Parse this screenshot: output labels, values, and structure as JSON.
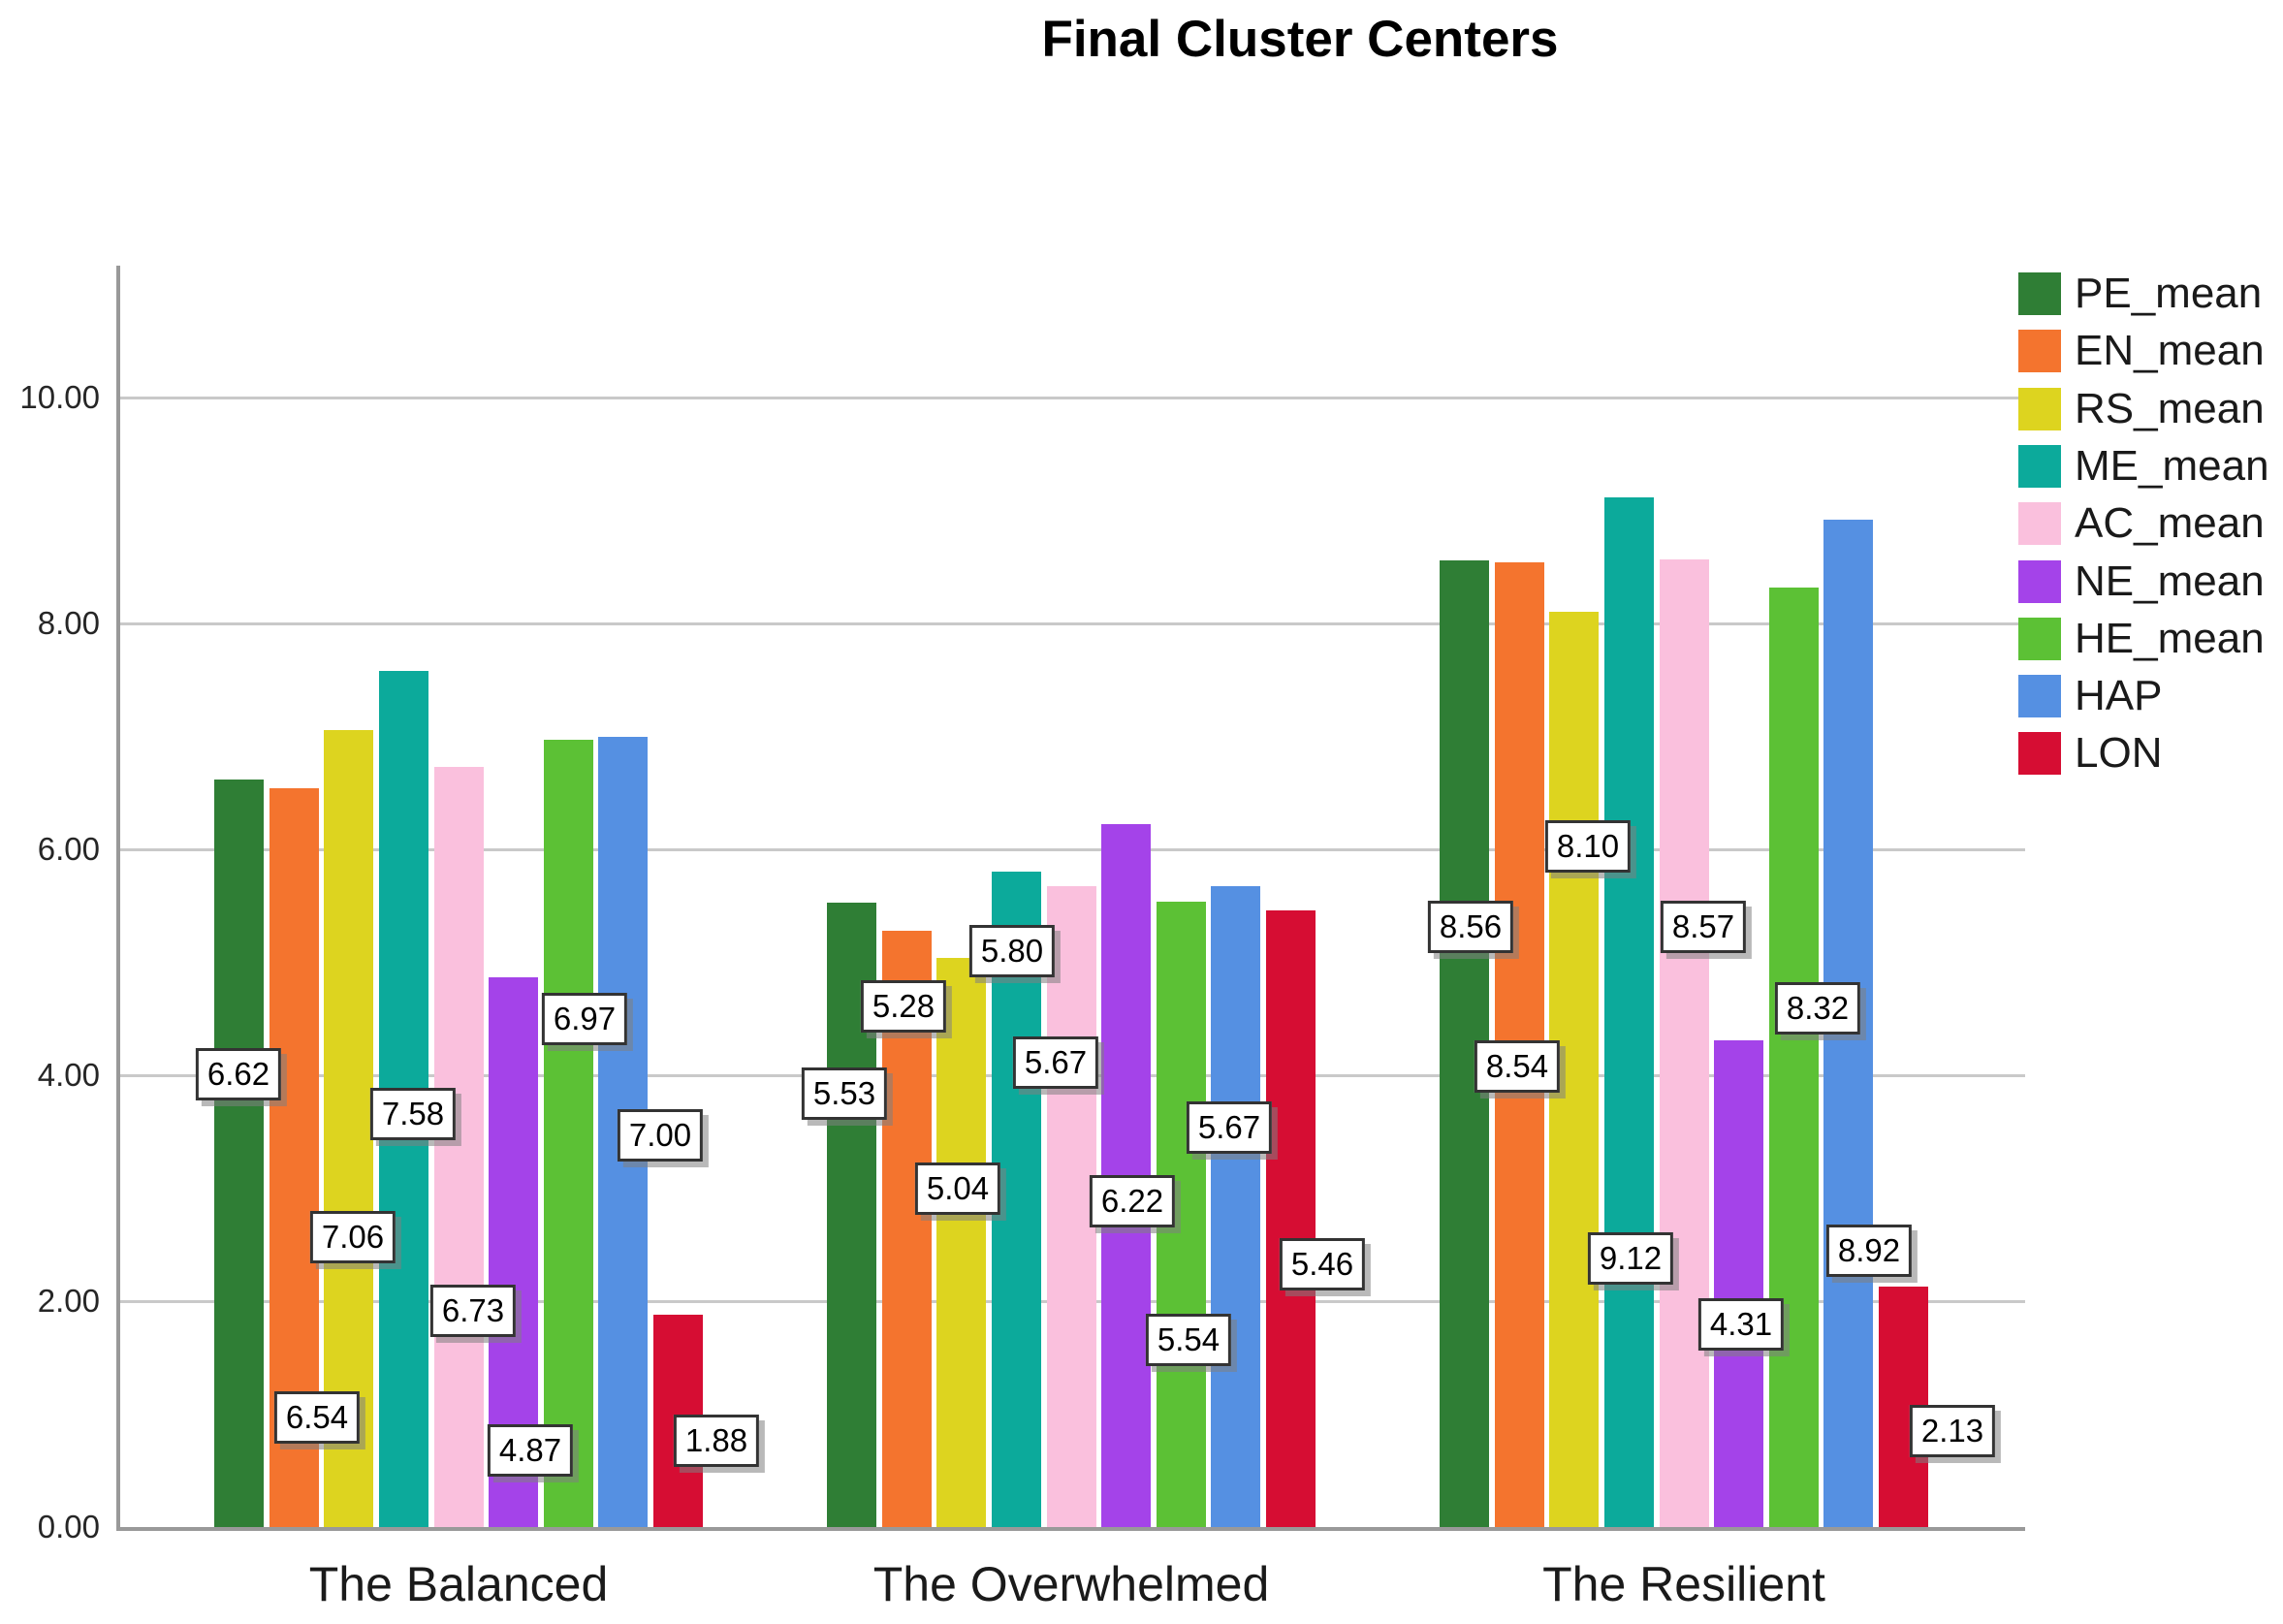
{
  "chart_data": {
    "type": "bar",
    "title": "Final Cluster Centers",
    "categories": [
      "The Balanced",
      "The Overwhelmed",
      "The Resilient"
    ],
    "series": [
      {
        "name": "PE_mean",
        "color": "#2f7e35",
        "values": [
          6.62,
          5.53,
          8.56
        ]
      },
      {
        "name": "EN_mean",
        "color": "#f4742e",
        "values": [
          6.54,
          5.28,
          8.54
        ]
      },
      {
        "name": "RS_mean",
        "color": "#ddd41f",
        "values": [
          7.06,
          5.04,
          8.1
        ]
      },
      {
        "name": "ME_mean",
        "color": "#0caa9b",
        "values": [
          7.58,
          5.8,
          9.12
        ]
      },
      {
        "name": "AC_mean",
        "color": "#fac0dd",
        "values": [
          6.73,
          5.67,
          8.57
        ]
      },
      {
        "name": "NE_mean",
        "color": "#a443e9",
        "values": [
          4.87,
          6.22,
          4.31
        ]
      },
      {
        "name": "HE_mean",
        "color": "#5cc135",
        "values": [
          6.97,
          5.54,
          8.32
        ]
      },
      {
        "name": "HAP",
        "color": "#5590e2",
        "values": [
          7.0,
          5.67,
          8.92
        ]
      },
      {
        "name": "LON",
        "color": "#d60d33",
        "values": [
          1.88,
          5.46,
          2.13
        ]
      }
    ],
    "y_ticks": [
      0,
      2,
      4,
      6,
      8,
      10
    ],
    "y_tick_labels": [
      "0.00",
      "2.00",
      "4.00",
      "6.00",
      "8.00",
      "10.00"
    ],
    "ylim": [
      0,
      11.2
    ],
    "xlabel": "",
    "ylabel": "",
    "grid": true,
    "legend_position": "right",
    "value_labels": {
      "format": "2dp",
      "positions": [
        [
          [
            246,
            4.01
          ],
          [
            871,
            3.84
          ],
          [
            1517,
            5.31
          ]
        ],
        [
          [
            327,
            0.97
          ],
          [
            932,
            4.61
          ],
          [
            1565,
            4.08
          ]
        ],
        [
          [
            364,
            2.57
          ],
          [
            988,
            3.0
          ],
          [
            1638,
            6.03
          ]
        ],
        [
          [
            426,
            3.66
          ],
          [
            1044,
            5.1
          ],
          [
            1682,
            2.38
          ]
        ],
        [
          [
            488,
            1.91
          ],
          [
            1089,
            4.11
          ],
          [
            1757,
            5.31
          ]
        ],
        [
          [
            547,
            0.68
          ],
          [
            1168,
            2.88
          ],
          [
            1796,
            1.79
          ]
        ],
        [
          [
            603,
            4.5
          ],
          [
            1226,
            1.66
          ],
          [
            1875,
            4.59
          ]
        ],
        [
          [
            681,
            3.47
          ],
          [
            1268,
            3.54
          ],
          [
            1928,
            2.45
          ]
        ],
        [
          [
            739,
            0.76
          ],
          [
            1364,
            2.33
          ],
          [
            2014,
            0.85
          ]
        ]
      ]
    }
  }
}
